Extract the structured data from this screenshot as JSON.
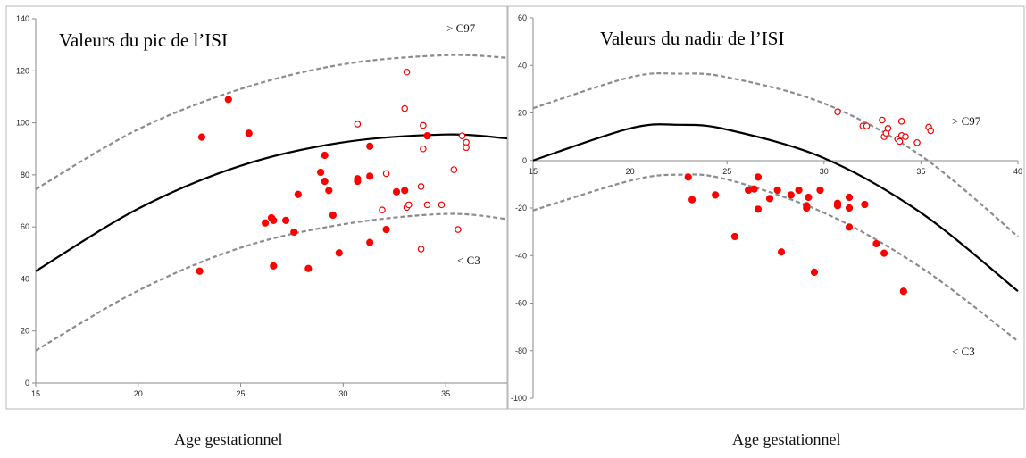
{
  "chart_data": [
    {
      "type": "scatter",
      "title": "Valeurs du pic de l’ISI",
      "xlabel": "Age gestationnel",
      "xlim": [
        15,
        38
      ],
      "ylim": [
        0,
        140
      ],
      "xticks": [
        15,
        20,
        25,
        30,
        35
      ],
      "yticks": [
        0,
        20,
        40,
        60,
        80,
        100,
        120,
        140
      ],
      "annotations": [
        "> C97",
        "< C3"
      ],
      "curves": {
        "upper_c97": [
          [
            15,
            74.5
          ],
          [
            20,
            97.5
          ],
          [
            25,
            113
          ],
          [
            30,
            122.5
          ],
          [
            35,
            126
          ],
          [
            38,
            125
          ]
        ],
        "median": [
          [
            15,
            43
          ],
          [
            20,
            67
          ],
          [
            25,
            83.5
          ],
          [
            30,
            92.5
          ],
          [
            35,
            95.5
          ],
          [
            38,
            94
          ]
        ],
        "lower_c3": [
          [
            15,
            12.5
          ],
          [
            20,
            35.5
          ],
          [
            25,
            52
          ],
          [
            30,
            61
          ],
          [
            35,
            65
          ],
          [
            38,
            63
          ]
        ]
      },
      "series_filled": [
        [
          23,
          43
        ],
        [
          23.1,
          94.5
        ],
        [
          24.4,
          109
        ],
        [
          25.4,
          96
        ],
        [
          26.2,
          61.5
        ],
        [
          26.5,
          63.5
        ],
        [
          26.6,
          62.5
        ],
        [
          26.6,
          45
        ],
        [
          27.2,
          62.5
        ],
        [
          27.6,
          58
        ],
        [
          27.8,
          72.5
        ],
        [
          28.3,
          44
        ],
        [
          28.9,
          81
        ],
        [
          29.1,
          87.5
        ],
        [
          29.1,
          77.5
        ],
        [
          29.3,
          74
        ],
        [
          29.5,
          64.5
        ],
        [
          29.8,
          50
        ],
        [
          30.7,
          78.5
        ],
        [
          30.7,
          77.5
        ],
        [
          31.3,
          54
        ],
        [
          31.3,
          79.5
        ],
        [
          31.3,
          91
        ],
        [
          32.1,
          59
        ],
        [
          32.6,
          73.5
        ],
        [
          33,
          74
        ],
        [
          34.1,
          95
        ]
      ],
      "series_open": [
        [
          30.7,
          99.5
        ],
        [
          31.9,
          66.5
        ],
        [
          32.1,
          80.5
        ],
        [
          33,
          105.5
        ],
        [
          33.1,
          119.5
        ],
        [
          33.1,
          67.5
        ],
        [
          33.2,
          68.5
        ],
        [
          33.8,
          75.5
        ],
        [
          33.8,
          51.5
        ],
        [
          33.9,
          99
        ],
        [
          33.9,
          90
        ],
        [
          34.1,
          68.5
        ],
        [
          34.8,
          68.5
        ],
        [
          35.4,
          82
        ],
        [
          35.6,
          59
        ],
        [
          35.8,
          95
        ],
        [
          36,
          92.5
        ],
        [
          36,
          90.5
        ]
      ]
    },
    {
      "type": "scatter",
      "title": "Valeurs du nadir de l’ISI",
      "xlabel": "Age gestationnel",
      "xlim": [
        15,
        40
      ],
      "ylim": [
        -100,
        60
      ],
      "xticks": [
        15,
        20,
        25,
        30,
        35,
        40
      ],
      "yticks": [
        -100,
        -80,
        -60,
        -40,
        -20,
        0,
        20,
        40,
        60
      ],
      "annotations": [
        "> C97",
        "< C3"
      ],
      "curves": {
        "upper_c97": [
          [
            15,
            22
          ],
          [
            20,
            35
          ],
          [
            22.5,
            36.5
          ],
          [
            25,
            35
          ],
          [
            30,
            24
          ],
          [
            35,
            2
          ],
          [
            40,
            -32
          ]
        ],
        "median": [
          [
            15,
            0
          ],
          [
            20,
            13.5
          ],
          [
            22.5,
            15
          ],
          [
            25,
            13
          ],
          [
            30,
            1
          ],
          [
            35,
            -22
          ],
          [
            40,
            -55
          ]
        ],
        "lower_c3": [
          [
            15,
            -21
          ],
          [
            20,
            -8.5
          ],
          [
            22.5,
            -6
          ],
          [
            25,
            -8
          ],
          [
            30,
            -22
          ],
          [
            35,
            -45
          ],
          [
            40,
            -76
          ]
        ]
      },
      "series_filled": [
        [
          23,
          -7
        ],
        [
          23.2,
          -16.5
        ],
        [
          24.4,
          -14.5
        ],
        [
          25.4,
          -32
        ],
        [
          26.1,
          -12.5
        ],
        [
          26.4,
          -12
        ],
        [
          26.6,
          -7
        ],
        [
          26.6,
          -20.5
        ],
        [
          27.2,
          -16
        ],
        [
          27.6,
          -12.5
        ],
        [
          27.8,
          -38.5
        ],
        [
          28.3,
          -14.5
        ],
        [
          28.7,
          -12.5
        ],
        [
          29.1,
          -19
        ],
        [
          29.1,
          -20
        ],
        [
          29.2,
          -15.5
        ],
        [
          29.5,
          -47
        ],
        [
          29.8,
          -12.5
        ],
        [
          30.7,
          -18
        ],
        [
          30.7,
          -19
        ],
        [
          31.3,
          -15.5
        ],
        [
          31.3,
          -20
        ],
        [
          31.3,
          -28
        ],
        [
          32.1,
          -18.5
        ],
        [
          32.7,
          -35
        ],
        [
          33.1,
          -39
        ],
        [
          34.1,
          -55
        ]
      ],
      "series_open": [
        [
          30.7,
          20.5
        ],
        [
          32,
          14.5
        ],
        [
          32.2,
          14.5
        ],
        [
          33,
          17
        ],
        [
          33.1,
          10
        ],
        [
          33.2,
          11.5
        ],
        [
          33.3,
          13.5
        ],
        [
          33.8,
          9
        ],
        [
          33.9,
          8
        ],
        [
          34,
          16.5
        ],
        [
          34,
          10.5
        ],
        [
          34.2,
          10
        ],
        [
          34.8,
          7.5
        ],
        [
          35.4,
          14
        ],
        [
          35.5,
          12.5
        ]
      ]
    }
  ],
  "colors": {
    "points": "#ff0000",
    "median": "#000000",
    "percentile": "#8c8c8c",
    "axis": "#8a8a8a"
  }
}
